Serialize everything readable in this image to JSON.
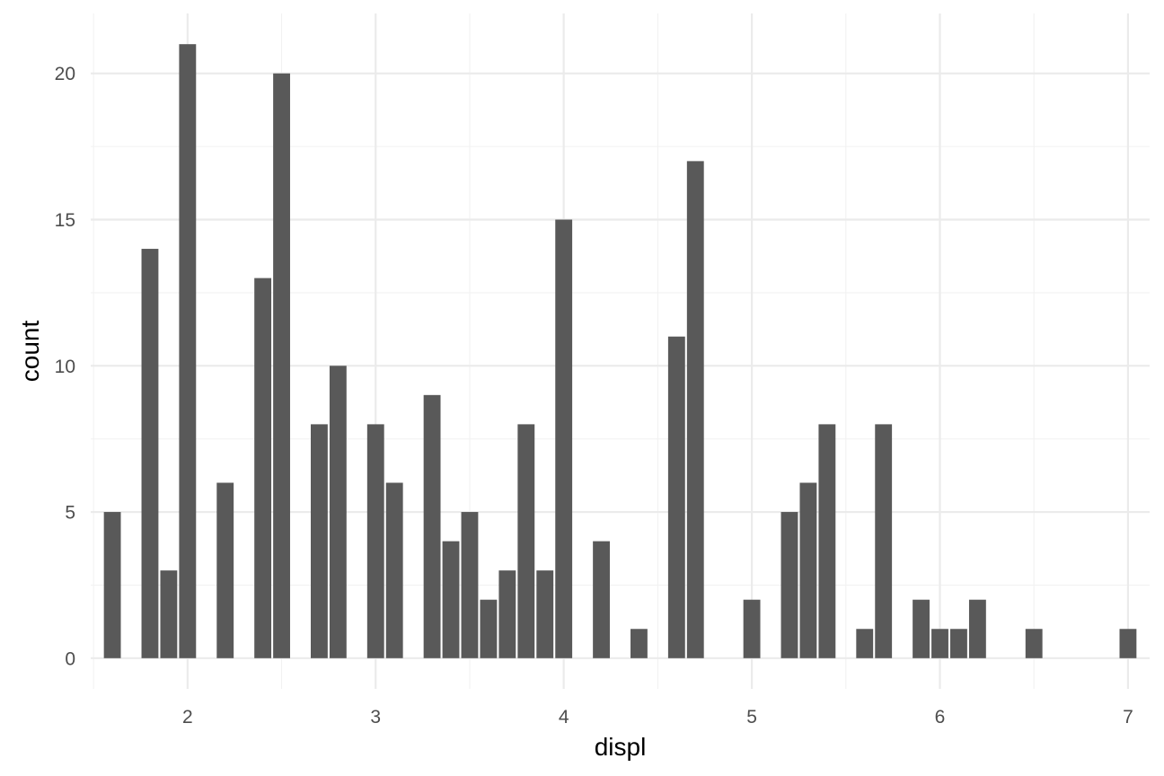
{
  "chart_data": {
    "type": "bar",
    "title": "",
    "xlabel": "displ",
    "ylabel": "count",
    "xlim": [
      1.485,
      7.115
    ],
    "ylim": [
      -1.05,
      22.05
    ],
    "x_ticks": [
      2,
      3,
      4,
      5,
      6,
      7
    ],
    "x_tick_labels": [
      "2",
      "3",
      "4",
      "5",
      "6",
      "7"
    ],
    "y_ticks": [
      0,
      5,
      10,
      15,
      20
    ],
    "y_tick_labels": [
      "0",
      "5",
      "10",
      "15",
      "20"
    ],
    "bar_width": 0.09,
    "grid": true,
    "legend": "none",
    "colors": {
      "bar": "#595959",
      "grid_major": "#ebebeb",
      "grid_minor": "#f2f2f2",
      "tick_text": "#4d4d4d",
      "title_text": "#000000",
      "background": "#ffffff"
    },
    "x": [
      1.6,
      1.8,
      1.9,
      2.0,
      2.2,
      2.4,
      2.5,
      2.7,
      2.8,
      3.0,
      3.1,
      3.3,
      3.4,
      3.5,
      3.6,
      3.7,
      3.8,
      3.9,
      4.0,
      4.2,
      4.4,
      4.6,
      4.7,
      5.0,
      5.2,
      5.3,
      5.4,
      5.6,
      5.7,
      5.9,
      6.0,
      6.1,
      6.2,
      6.5,
      7.0
    ],
    "values": [
      5,
      14,
      3,
      21,
      6,
      13,
      20,
      8,
      10,
      8,
      6,
      9,
      4,
      5,
      2,
      3,
      8,
      3,
      15,
      4,
      1,
      11,
      17,
      2,
      5,
      6,
      8,
      1,
      8,
      2,
      1,
      1,
      2,
      1,
      1
    ]
  }
}
